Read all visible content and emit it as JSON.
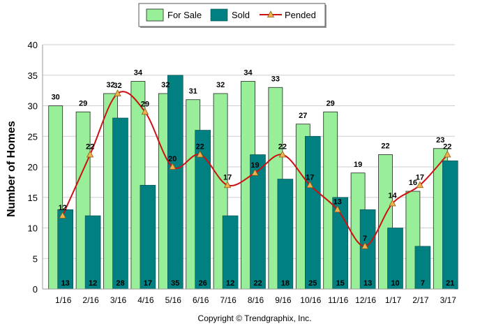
{
  "chart_data": {
    "type": "bar",
    "title": "",
    "xlabel": "",
    "ylabel": "Number of Homes",
    "ylim": [
      0,
      40
    ],
    "yticks": [
      0,
      5,
      10,
      15,
      20,
      25,
      30,
      35,
      40
    ],
    "grid": true,
    "legend_position": "top-center",
    "categories": [
      "1/16",
      "2/16",
      "3/16",
      "4/16",
      "5/16",
      "6/16",
      "7/16",
      "8/16",
      "9/16",
      "10/16",
      "11/16",
      "12/16",
      "1/17",
      "2/17",
      "3/17"
    ],
    "series": [
      {
        "name": "For Sale",
        "type": "bar",
        "color": "#99ee99",
        "values": [
          30,
          29,
          32,
          34,
          32,
          31,
          32,
          34,
          33,
          27,
          29,
          19,
          22,
          16,
          23
        ]
      },
      {
        "name": "Sold",
        "type": "bar",
        "color": "#008080",
        "values": [
          13,
          12,
          28,
          17,
          35,
          26,
          12,
          22,
          18,
          25,
          15,
          13,
          10,
          7,
          21
        ]
      },
      {
        "name": "Pended",
        "type": "line",
        "color": "#cc1111",
        "marker_color": "#f0b050",
        "values": [
          12,
          22,
          32,
          29,
          20,
          22,
          17,
          19,
          22,
          17,
          13,
          7,
          14,
          17,
          22
        ]
      }
    ]
  },
  "footer": {
    "copyright": "Copyright © Trendgraphix, Inc."
  }
}
